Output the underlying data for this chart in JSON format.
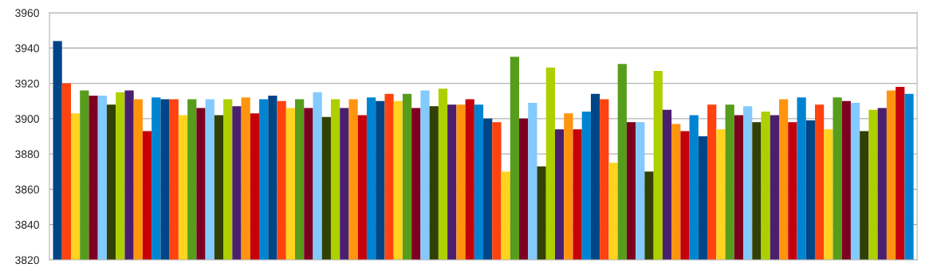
{
  "chart_data": {
    "type": "bar",
    "categories": [
      null,
      null,
      null,
      null,
      null,
      null,
      null,
      null,
      null,
      null,
      null,
      null,
      null,
      null,
      null,
      null,
      null,
      null,
      null,
      null,
      null,
      null,
      null,
      null,
      null,
      null,
      null,
      null,
      null,
      null,
      null,
      null,
      null,
      null,
      null,
      null,
      null,
      null,
      null,
      null,
      null,
      null,
      null,
      null,
      null,
      null,
      null,
      null,
      null,
      null,
      null,
      null,
      null,
      null,
      null,
      null,
      null,
      null,
      null,
      null,
      null,
      null,
      null,
      null,
      null,
      null,
      null,
      null,
      null,
      null,
      null,
      null,
      null,
      null,
      null,
      null,
      null,
      null,
      null,
      null,
      null,
      null,
      null,
      null,
      null,
      null,
      null,
      null,
      null,
      null,
      null,
      null,
      null,
      null,
      null,
      null
    ],
    "values": [
      3944,
      3920,
      3903,
      3916,
      3913,
      3913,
      3908,
      3915,
      3916,
      3911,
      3893,
      3912,
      3911,
      3911,
      3902,
      3911,
      3906,
      3911,
      3902,
      3911,
      3907,
      3912,
      3903,
      3911,
      3913,
      3910,
      3906,
      3911,
      3906,
      3915,
      3901,
      3911,
      3906,
      3911,
      3902,
      3912,
      3910,
      3914,
      3910,
      3914,
      3906,
      3916,
      3907,
      3917,
      3908,
      3908,
      3911,
      3908,
      3900,
      3898,
      3870,
      3935,
      3900,
      3909,
      3873,
      3929,
      3894,
      3903,
      3894,
      3904,
      3914,
      3911,
      3875,
      3931,
      3898,
      3898,
      3870,
      3927,
      3905,
      3897,
      3893,
      3902,
      3890,
      3908,
      3894,
      3908,
      3902,
      3907,
      3898,
      3904,
      3902,
      3911,
      3898,
      3912,
      3899,
      3908,
      3894,
      3912,
      3910,
      3909,
      3893,
      3905,
      3906,
      3916,
      3918,
      3914
    ],
    "colors": [
      "#004586",
      "#ff420e",
      "#ffd320",
      "#579d1c",
      "#7e0021",
      "#83caff",
      "#314004",
      "#aecf00",
      "#4b1f6f",
      "#ff950e",
      "#c5000b",
      "#0084d1",
      "#004586",
      "#ff420e",
      "#ffd320",
      "#579d1c",
      "#7e0021",
      "#83caff",
      "#314004",
      "#aecf00",
      "#4b1f6f",
      "#ff950e",
      "#c5000b",
      "#0084d1",
      "#004586",
      "#ff420e",
      "#ffd320",
      "#579d1c",
      "#7e0021",
      "#83caff",
      "#314004",
      "#aecf00",
      "#4b1f6f",
      "#ff950e",
      "#c5000b",
      "#0084d1",
      "#004586",
      "#ff420e",
      "#ffd320",
      "#579d1c",
      "#7e0021",
      "#83caff",
      "#314004",
      "#aecf00",
      "#4b1f6f",
      "#ff950e",
      "#c5000b",
      "#0084d1",
      "#004586",
      "#ff420e",
      "#ffd320",
      "#579d1c",
      "#7e0021",
      "#83caff",
      "#314004",
      "#aecf00",
      "#4b1f6f",
      "#ff950e",
      "#c5000b",
      "#0084d1",
      "#004586",
      "#ff420e",
      "#ffd320",
      "#579d1c",
      "#7e0021",
      "#83caff",
      "#314004",
      "#aecf00",
      "#4b1f6f",
      "#ff950e",
      "#c5000b",
      "#0084d1",
      "#004586",
      "#ff420e",
      "#ffd320",
      "#579d1c",
      "#7e0021",
      "#83caff",
      "#314004",
      "#aecf00",
      "#4b1f6f",
      "#ff950e",
      "#c5000b",
      "#0084d1",
      "#004586",
      "#ff420e",
      "#ffd320",
      "#579d1c",
      "#7e0021",
      "#83caff",
      "#314004",
      "#aecf00",
      "#4b1f6f",
      "#ff950e",
      "#c5000b",
      "#0084d1"
    ],
    "ylim": [
      3820,
      3960
    ],
    "yticks": [
      3820,
      3840,
      3860,
      3880,
      3900,
      3920,
      3940,
      3960
    ],
    "grid": "y"
  }
}
